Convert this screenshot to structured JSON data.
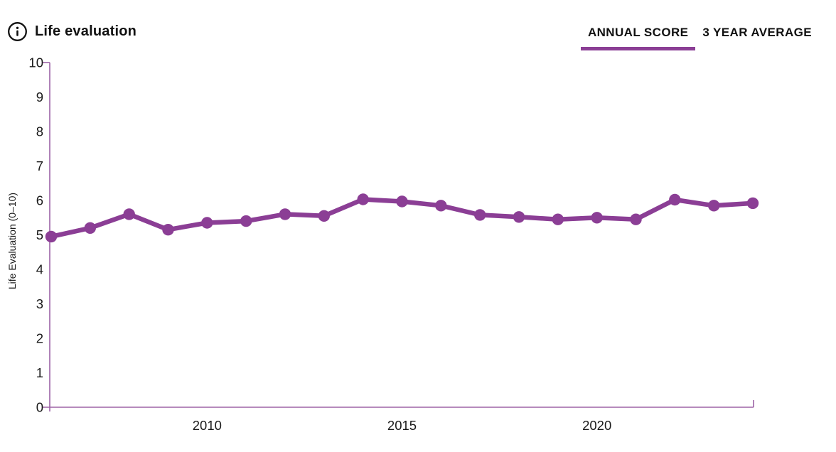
{
  "header": {
    "title": "Life evaluation"
  },
  "tabs": [
    {
      "label": "ANNUAL SCORE",
      "active": true
    },
    {
      "label": "3 YEAR AVERAGE",
      "active": false
    }
  ],
  "colors": {
    "line": "#8b3e95",
    "axis": "#9d63a6",
    "text": "#1a1a1a",
    "active_tab_underline": "#8b3e95"
  },
  "chart_data": {
    "type": "line",
    "series_name": "Annual score",
    "x": [
      2006,
      2007,
      2008,
      2009,
      2010,
      2011,
      2012,
      2013,
      2014,
      2015,
      2016,
      2017,
      2018,
      2019,
      2020,
      2021,
      2022,
      2023,
      2024
    ],
    "values": [
      4.95,
      5.2,
      5.6,
      5.15,
      5.35,
      5.4,
      5.6,
      5.55,
      6.03,
      5.97,
      5.85,
      5.58,
      5.52,
      5.45,
      5.5,
      5.45,
      6.02,
      5.85,
      5.92
    ],
    "title": "Life evaluation",
    "xlabel": "",
    "ylabel": "Life Evaluation (0–10)",
    "ylim": [
      0,
      10
    ],
    "xlim": [
      2006,
      2024
    ],
    "yticks": [
      0,
      1,
      2,
      3,
      4,
      5,
      6,
      7,
      8,
      9,
      10
    ],
    "xticks": [
      2010,
      2015,
      2020
    ],
    "grid": false,
    "legend": "none",
    "marker": "circle"
  }
}
